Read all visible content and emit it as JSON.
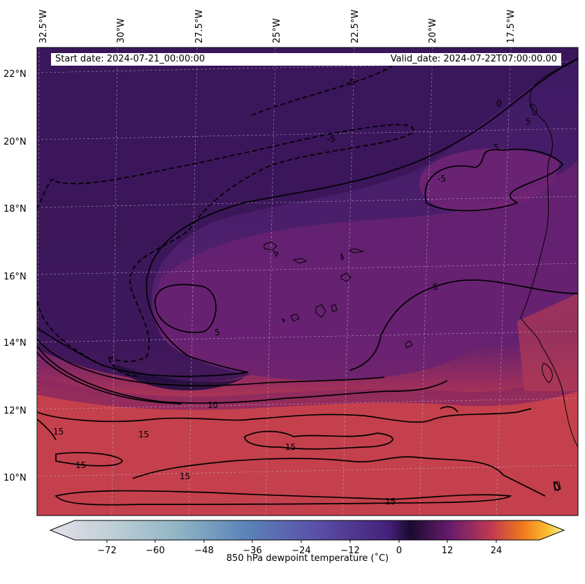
{
  "header": {
    "start_date": "Start date: 2024-07-21_00:00:00",
    "valid_date": "Valid_date: 2024-07-22T07:00:00.00"
  },
  "axes": {
    "lon_labels": [
      "32.5°W",
      "30°W",
      "27.5°W",
      "25°W",
      "22.5°W",
      "20°W",
      "17.5°W"
    ],
    "lat_labels": [
      "22°N",
      "20°N",
      "18°N",
      "16°N",
      "14°N",
      "12°N",
      "10°N"
    ]
  },
  "contour_labels": [
    "-5",
    "-5",
    "0",
    "-5",
    "5",
    "5",
    "5",
    "5",
    "10",
    "15",
    "15",
    "15",
    "15",
    "15",
    "15"
  ],
  "colorbar": {
    "title": "850 hPa dewpoint temperature ($^\\circ$C)",
    "title_display": "850 hPa dewpoint temperature (˚C)",
    "ticks": [
      "−72",
      "−60",
      "−48",
      "−36",
      "−24",
      "−12",
      "0",
      "12",
      "24"
    ],
    "tick_values": [
      -72,
      -60,
      -48,
      -36,
      -24,
      -12,
      0,
      12,
      24
    ],
    "range": [
      -84,
      36
    ],
    "colormap": "grey-blue-purple-inferno"
  },
  "colors": {
    "dry_region": "#3b1a5e",
    "mid_region": "#6b2170",
    "moist_region": "#c8404a"
  }
}
